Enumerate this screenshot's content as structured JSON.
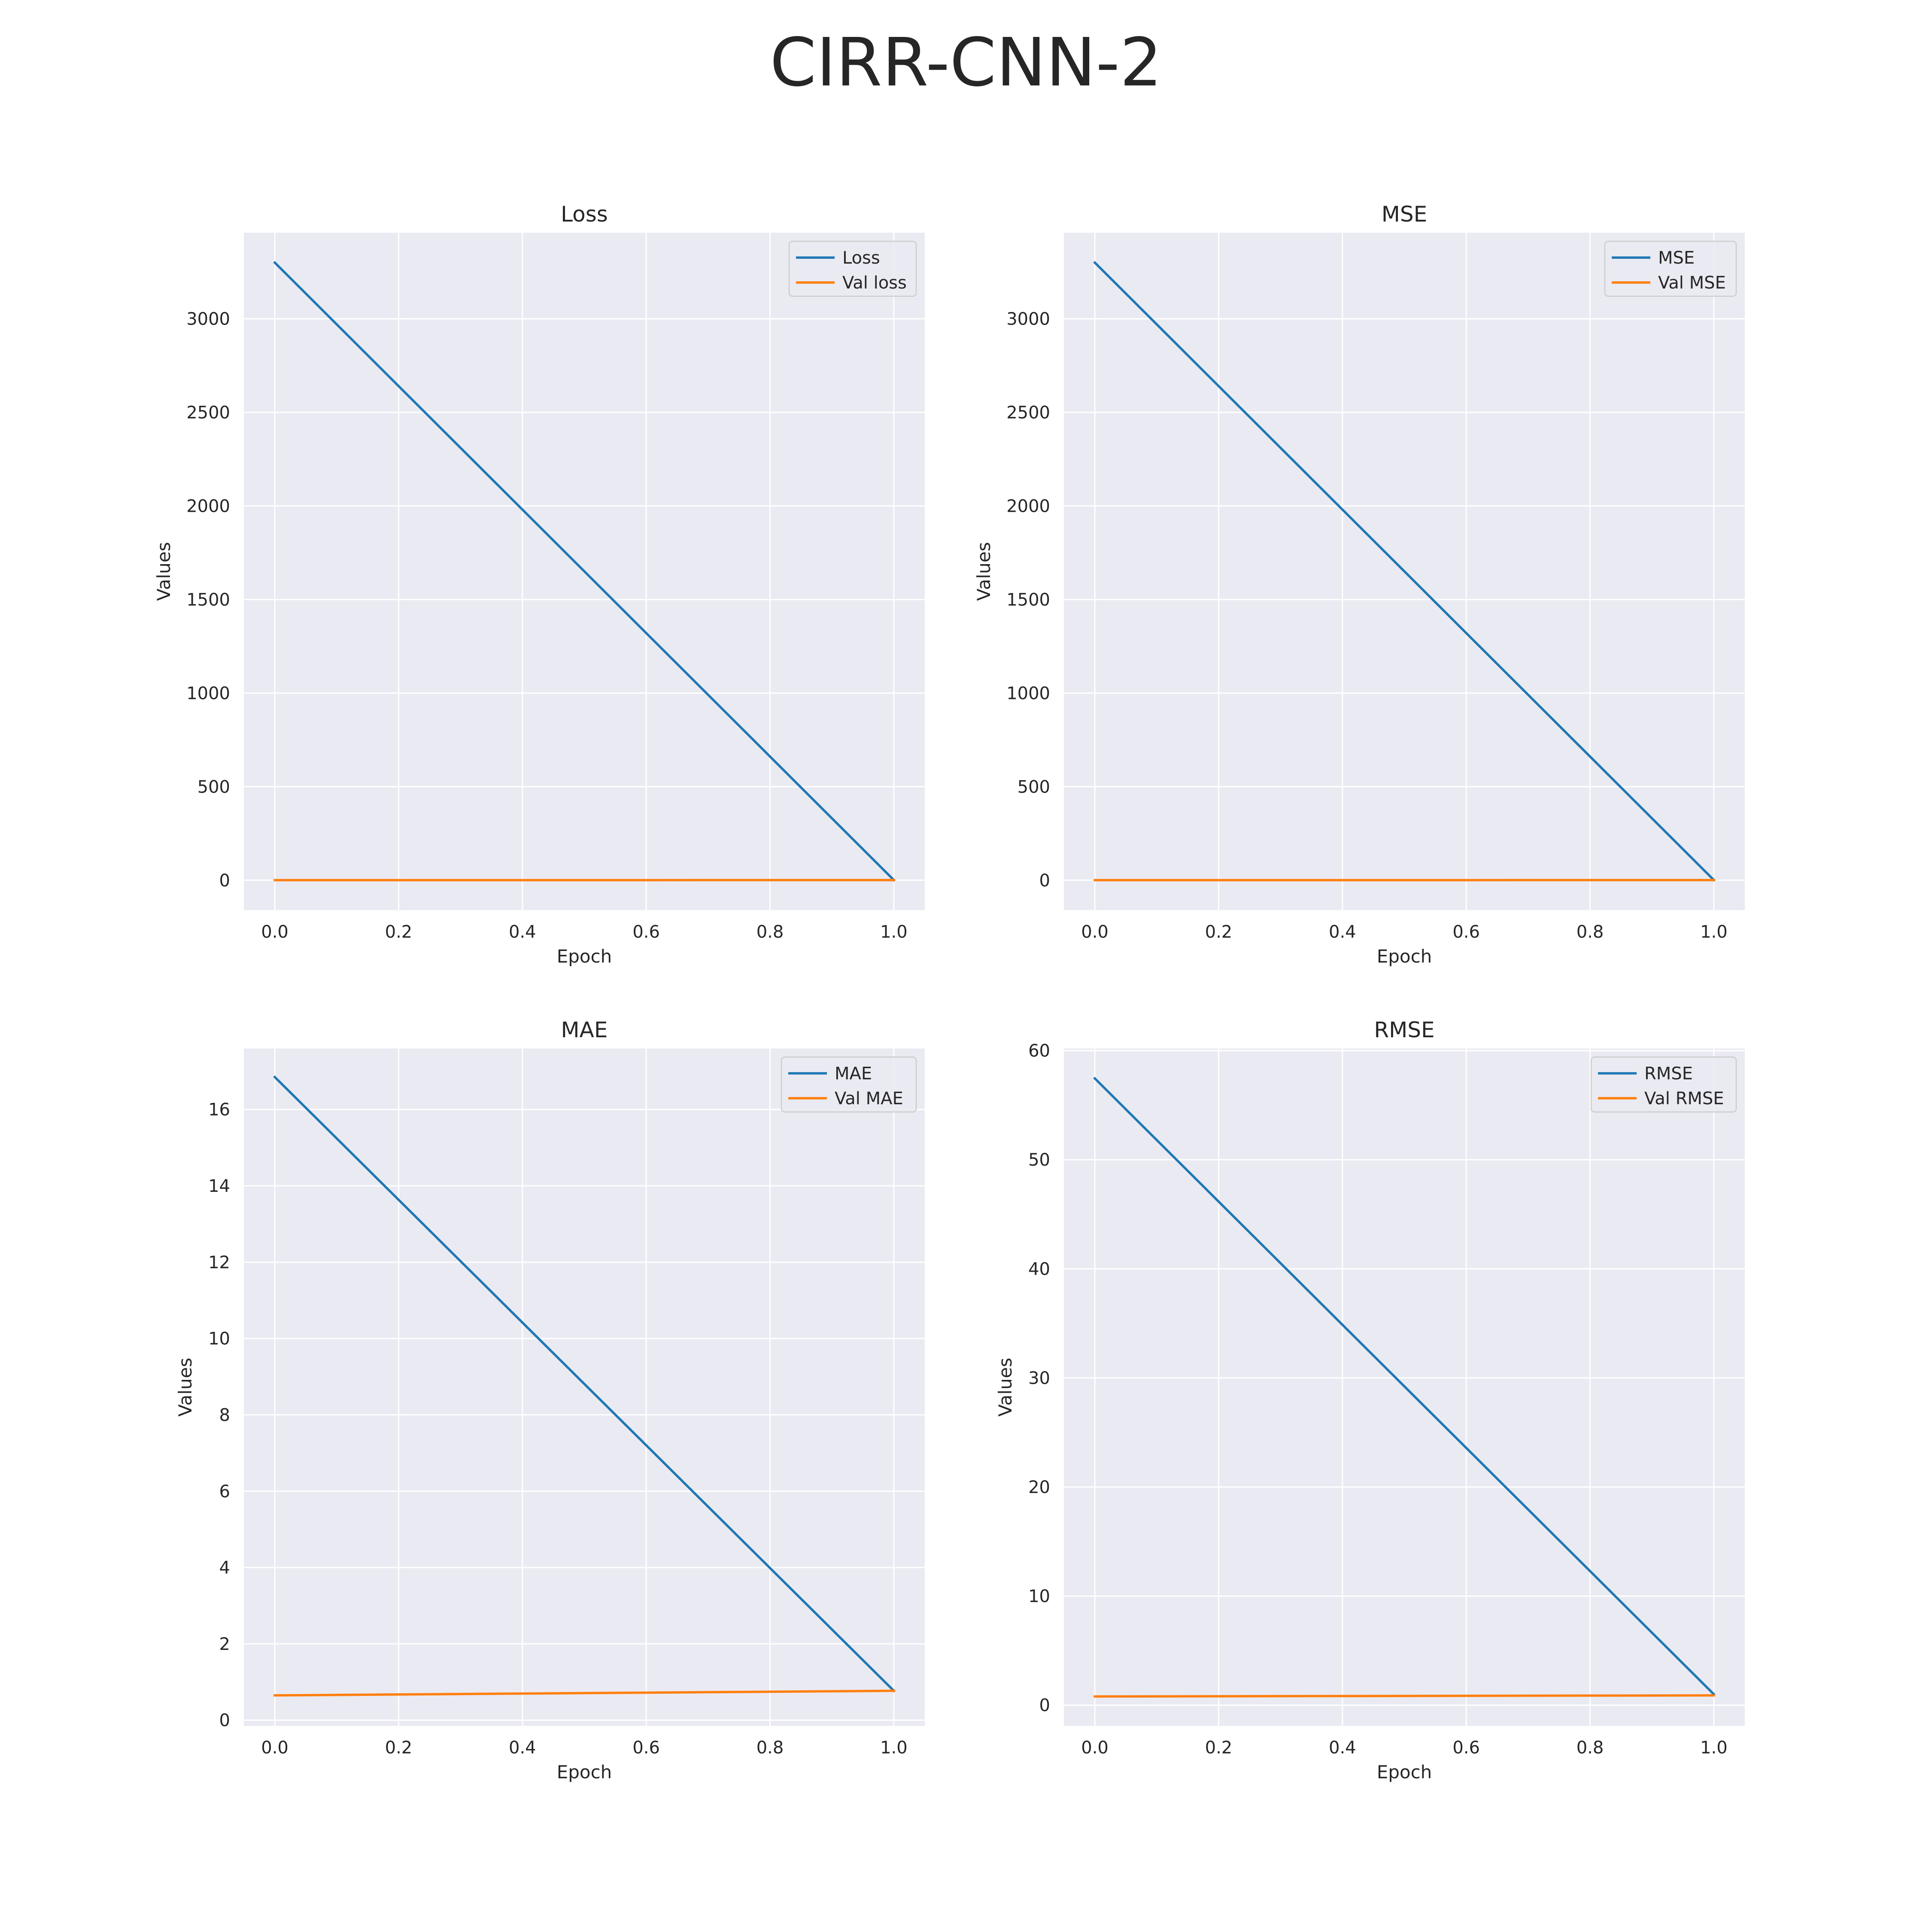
{
  "figure_title": "CIRR-CNN-2",
  "colors": {
    "train": "#1f77b4",
    "val": "#ff7f0e",
    "background": "#eaeaf2",
    "grid": "#ffffff"
  },
  "chart_data": [
    {
      "type": "line",
      "title": "Loss",
      "xlabel": "Epoch",
      "ylabel": "Values",
      "xlim": [
        -0.05,
        1.05
      ],
      "ylim": [
        -160,
        3460
      ],
      "xticks": [
        0.0,
        0.2,
        0.4,
        0.6,
        0.8,
        1.0
      ],
      "xtick_labels": [
        "0.0",
        "0.2",
        "0.4",
        "0.6",
        "0.8",
        "1.0"
      ],
      "yticks": [
        0,
        500,
        1000,
        1500,
        2000,
        2500,
        3000
      ],
      "ytick_labels": [
        "0",
        "500",
        "1000",
        "1500",
        "2000",
        "2500",
        "3000"
      ],
      "grid": true,
      "legend": "top-right",
      "x": [
        0,
        1
      ],
      "series": [
        {
          "name": "Loss",
          "values": [
            3300,
            1.0
          ]
        },
        {
          "name": "Val loss",
          "values": [
            0.6,
            0.7
          ]
        }
      ]
    },
    {
      "type": "line",
      "title": "MSE",
      "xlabel": "Epoch",
      "ylabel": "Values",
      "xlim": [
        -0.05,
        1.05
      ],
      "ylim": [
        -160,
        3460
      ],
      "xticks": [
        0.0,
        0.2,
        0.4,
        0.6,
        0.8,
        1.0
      ],
      "xtick_labels": [
        "0.0",
        "0.2",
        "0.4",
        "0.6",
        "0.8",
        "1.0"
      ],
      "yticks": [
        0,
        500,
        1000,
        1500,
        2000,
        2500,
        3000
      ],
      "ytick_labels": [
        "0",
        "500",
        "1000",
        "1500",
        "2000",
        "2500",
        "3000"
      ],
      "grid": true,
      "legend": "top-right",
      "x": [
        0,
        1
      ],
      "series": [
        {
          "name": "MSE",
          "values": [
            3300,
            1.0
          ]
        },
        {
          "name": "Val MSE",
          "values": [
            0.6,
            0.7
          ]
        }
      ]
    },
    {
      "type": "line",
      "title": "MAE",
      "xlabel": "Epoch",
      "ylabel": "Values",
      "xlim": [
        -0.05,
        1.05
      ],
      "ylim": [
        -0.15,
        17.6
      ],
      "xticks": [
        0.0,
        0.2,
        0.4,
        0.6,
        0.8,
        1.0
      ],
      "xtick_labels": [
        "0.0",
        "0.2",
        "0.4",
        "0.6",
        "0.8",
        "1.0"
      ],
      "yticks": [
        0,
        2,
        4,
        6,
        8,
        10,
        12,
        14,
        16
      ],
      "ytick_labels": [
        "0",
        "2",
        "4",
        "6",
        "8",
        "10",
        "12",
        "14",
        "16"
      ],
      "grid": true,
      "legend": "top-right",
      "x": [
        0,
        1
      ],
      "series": [
        {
          "name": "MAE",
          "values": [
            16.85,
            0.77
          ]
        },
        {
          "name": "Val MAE",
          "values": [
            0.65,
            0.77
          ]
        }
      ]
    },
    {
      "type": "line",
      "title": "RMSE",
      "xlabel": "Epoch",
      "ylabel": "Values",
      "xlim": [
        -0.05,
        1.05
      ],
      "ylim": [
        -1.9,
        60.2
      ],
      "xticks": [
        0.0,
        0.2,
        0.4,
        0.6,
        0.8,
        1.0
      ],
      "xtick_labels": [
        "0.0",
        "0.2",
        "0.4",
        "0.6",
        "0.8",
        "1.0"
      ],
      "yticks": [
        0,
        10,
        20,
        30,
        40,
        50,
        60
      ],
      "ytick_labels": [
        "0",
        "10",
        "20",
        "30",
        "40",
        "50",
        "60"
      ],
      "grid": true,
      "legend": "top-right",
      "x": [
        0,
        1
      ],
      "series": [
        {
          "name": "RMSE",
          "values": [
            57.45,
            1.0
          ]
        },
        {
          "name": "Val RMSE",
          "values": [
            0.8,
            0.9
          ]
        }
      ]
    }
  ]
}
